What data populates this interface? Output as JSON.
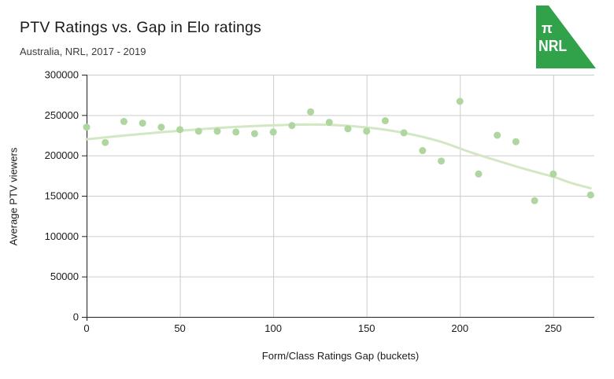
{
  "header": {
    "title": "PTV Ratings vs. Gap in Elo ratings",
    "subtitle": "Australia, NRL, 2017 - 2019"
  },
  "logo": {
    "pi_symbol": "π",
    "name": "NRL",
    "color": "#31a24a",
    "text_color": "#ffffff"
  },
  "chart_data": {
    "type": "scatter",
    "title": "PTV Ratings vs. Gap in Elo ratings",
    "subtitle": "Australia, NRL, 2017 - 2019",
    "xlabel": "Form/Class Ratings Gap (buckets)",
    "ylabel": "Average PTV viewers",
    "xlim": [
      0,
      272
    ],
    "ylim": [
      0,
      300000
    ],
    "x_ticks": [
      0,
      50,
      100,
      150,
      200,
      250
    ],
    "x_tick_labels": [
      "0",
      "50",
      "100",
      "150",
      "200",
      "250"
    ],
    "y_ticks": [
      0,
      50000,
      100000,
      150000,
      200000,
      250000,
      300000
    ],
    "y_tick_labels": [
      "0",
      "50000",
      "100000",
      "150000",
      "200000",
      "250000",
      "300000"
    ],
    "grid": true,
    "legend": "none",
    "point_color": "#aed69e",
    "trendline_color": "#d2e7c3",
    "grid_color": "#cccccc",
    "axis_color": "#212121",
    "points": [
      [
        0,
        235000
      ],
      [
        10,
        216000
      ],
      [
        20,
        242000
      ],
      [
        30,
        240000
      ],
      [
        40,
        235000
      ],
      [
        50,
        232000
      ],
      [
        60,
        230000
      ],
      [
        70,
        230000
      ],
      [
        80,
        229000
      ],
      [
        90,
        227000
      ],
      [
        100,
        229000
      ],
      [
        110,
        237000
      ],
      [
        120,
        254000
      ],
      [
        130,
        241000
      ],
      [
        140,
        233000
      ],
      [
        150,
        230000
      ],
      [
        160,
        243000
      ],
      [
        170,
        228000
      ],
      [
        180,
        206000
      ],
      [
        190,
        193000
      ],
      [
        200,
        267000
      ],
      [
        210,
        177000
      ],
      [
        220,
        225000
      ],
      [
        230,
        217000
      ],
      [
        240,
        144000
      ],
      [
        250,
        177000
      ],
      [
        270,
        151000
      ]
    ],
    "trendline": {
      "type": "smooth-polynomial",
      "points": [
        [
          0,
          220000
        ],
        [
          20,
          224600
        ],
        [
          40,
          228800
        ],
        [
          60,
          232300
        ],
        [
          80,
          235300
        ],
        [
          100,
          237300
        ],
        [
          115,
          238200
        ],
        [
          130,
          237900
        ],
        [
          145,
          235700
        ],
        [
          160,
          231800
        ],
        [
          175,
          225600
        ],
        [
          190,
          216800
        ],
        [
          205,
          204500
        ],
        [
          220,
          193500
        ],
        [
          235,
          183000
        ],
        [
          250,
          173500
        ],
        [
          260,
          165600
        ],
        [
          270,
          159400
        ]
      ]
    }
  }
}
